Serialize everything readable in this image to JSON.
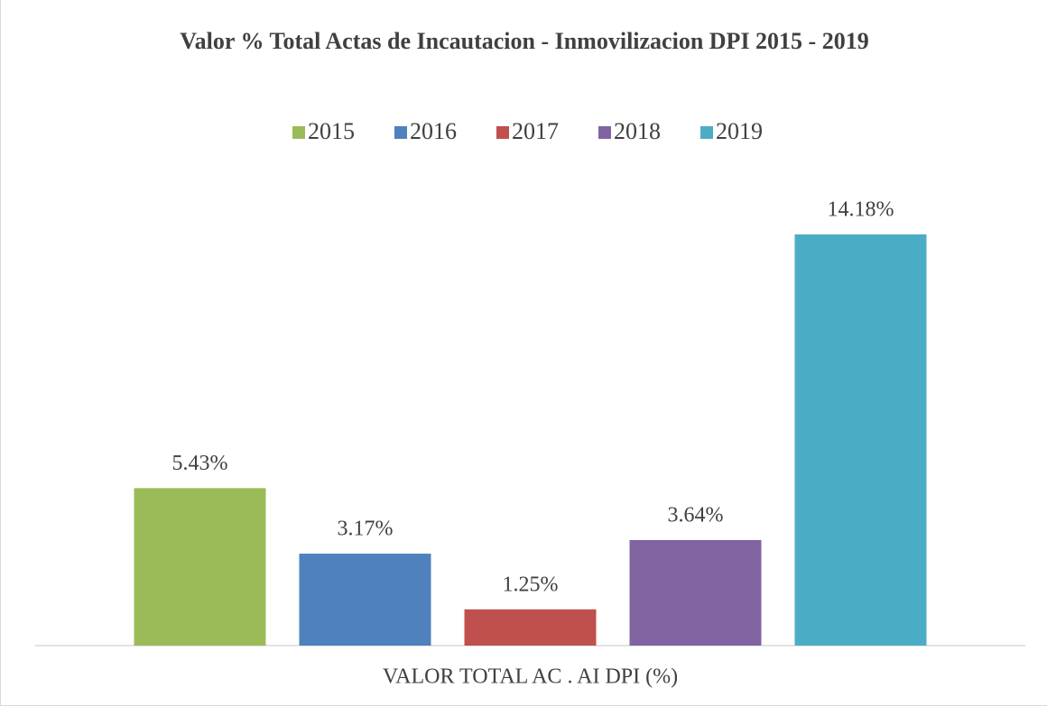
{
  "chart_data": {
    "type": "bar",
    "title": "Valor % Total Actas de Incautacion - Inmovilizacion DPI 2015 - 2019",
    "categories": [
      "VALOR TOTAL AC . AI DPI (%)"
    ],
    "series": [
      {
        "name": "2015",
        "color": "#9bbb59",
        "values": [
          5.43
        ],
        "value_labels": [
          "5.43%"
        ]
      },
      {
        "name": "2016",
        "color": "#4f81bd",
        "values": [
          3.17
        ],
        "value_labels": [
          "3.17%"
        ]
      },
      {
        "name": "2017",
        "color": "#c0504d",
        "values": [
          1.25
        ],
        "value_labels": [
          "1.25%"
        ]
      },
      {
        "name": "2018",
        "color": "#8064a2",
        "values": [
          3.64
        ],
        "value_labels": [
          "3.64%"
        ]
      },
      {
        "name": "2019",
        "color": "#4bacc6",
        "values": [
          14.18
        ],
        "value_labels": [
          "14.18%"
        ]
      }
    ],
    "legend": "top"
  }
}
